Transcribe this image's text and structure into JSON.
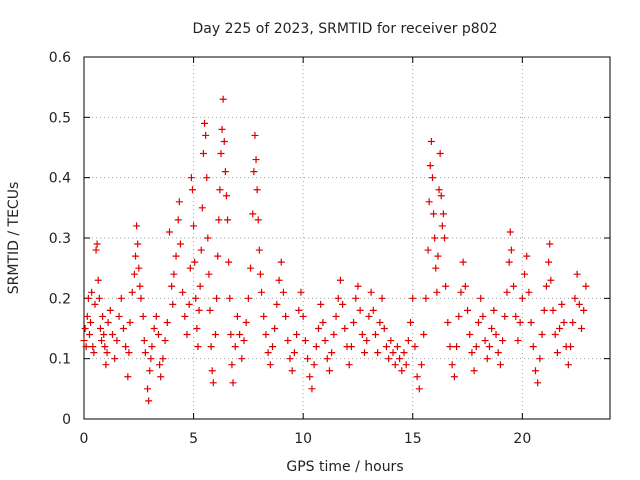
{
  "chart_data": {
    "type": "scatter",
    "title": "Day 225 of 2023, SRMTID for receiver p802",
    "xlabel": "GPS time / hours",
    "ylabel": "SRMTID / TECUs",
    "xlim": [
      0,
      24
    ],
    "ylim": [
      0,
      0.6
    ],
    "xticks": [
      0,
      5,
      10,
      15,
      20
    ],
    "yticks": [
      0,
      0.1,
      0.2,
      0.3,
      0.4,
      0.5,
      0.6
    ],
    "xtick_labels": [
      "0",
      "5",
      "10",
      "15",
      "20"
    ],
    "ytick_labels": [
      "0",
      "0.1",
      "0.2",
      "0.3",
      "0.4",
      "0.5",
      "0.6"
    ],
    "grid": true,
    "marker": "+",
    "series": [
      {
        "name": "SRMTID",
        "color": "#e00000",
        "points": [
          [
            0.0,
            0.13
          ],
          [
            0.05,
            0.15
          ],
          [
            0.1,
            0.12
          ],
          [
            0.15,
            0.17
          ],
          [
            0.2,
            0.2
          ],
          [
            0.25,
            0.14
          ],
          [
            0.3,
            0.16
          ],
          [
            0.35,
            0.21
          ],
          [
            0.4,
            0.12
          ],
          [
            0.45,
            0.11
          ],
          [
            0.5,
            0.19
          ],
          [
            0.55,
            0.28
          ],
          [
            0.6,
            0.29
          ],
          [
            0.65,
            0.23
          ],
          [
            0.7,
            0.2
          ],
          [
            0.75,
            0.15
          ],
          [
            0.8,
            0.13
          ],
          [
            0.85,
            0.17
          ],
          [
            0.9,
            0.14
          ],
          [
            0.95,
            0.12
          ],
          [
            1.0,
            0.09
          ],
          [
            1.05,
            0.11
          ],
          [
            1.1,
            0.16
          ],
          [
            1.2,
            0.18
          ],
          [
            1.3,
            0.14
          ],
          [
            1.4,
            0.1
          ],
          [
            1.5,
            0.13
          ],
          [
            1.6,
            0.17
          ],
          [
            1.7,
            0.2
          ],
          [
            1.8,
            0.15
          ],
          [
            1.9,
            0.12
          ],
          [
            2.0,
            0.07
          ],
          [
            2.05,
            0.11
          ],
          [
            2.1,
            0.16
          ],
          [
            2.2,
            0.21
          ],
          [
            2.3,
            0.24
          ],
          [
            2.35,
            0.27
          ],
          [
            2.4,
            0.32
          ],
          [
            2.45,
            0.29
          ],
          [
            2.5,
            0.25
          ],
          [
            2.55,
            0.22
          ],
          [
            2.6,
            0.2
          ],
          [
            2.7,
            0.17
          ],
          [
            2.75,
            0.13
          ],
          [
            2.8,
            0.11
          ],
          [
            2.9,
            0.05
          ],
          [
            2.95,
            0.03
          ],
          [
            3.0,
            0.08
          ],
          [
            3.05,
            0.1
          ],
          [
            3.1,
            0.12
          ],
          [
            3.2,
            0.15
          ],
          [
            3.3,
            0.17
          ],
          [
            3.4,
            0.14
          ],
          [
            3.45,
            0.09
          ],
          [
            3.5,
            0.07
          ],
          [
            3.6,
            0.1
          ],
          [
            3.7,
            0.13
          ],
          [
            3.8,
            0.16
          ],
          [
            3.9,
            0.31
          ],
          [
            4.0,
            0.22
          ],
          [
            4.05,
            0.19
          ],
          [
            4.1,
            0.24
          ],
          [
            4.2,
            0.27
          ],
          [
            4.3,
            0.33
          ],
          [
            4.35,
            0.36
          ],
          [
            4.4,
            0.29
          ],
          [
            4.5,
            0.21
          ],
          [
            4.6,
            0.17
          ],
          [
            4.7,
            0.14
          ],
          [
            4.8,
            0.19
          ],
          [
            4.85,
            0.25
          ],
          [
            4.9,
            0.4
          ],
          [
            4.95,
            0.38
          ],
          [
            5.0,
            0.32
          ],
          [
            5.05,
            0.26
          ],
          [
            5.1,
            0.2
          ],
          [
            5.15,
            0.15
          ],
          [
            5.2,
            0.12
          ],
          [
            5.25,
            0.18
          ],
          [
            5.3,
            0.22
          ],
          [
            5.35,
            0.28
          ],
          [
            5.4,
            0.35
          ],
          [
            5.45,
            0.44
          ],
          [
            5.5,
            0.49
          ],
          [
            5.55,
            0.47
          ],
          [
            5.6,
            0.4
          ],
          [
            5.65,
            0.3
          ],
          [
            5.7,
            0.24
          ],
          [
            5.75,
            0.18
          ],
          [
            5.8,
            0.12
          ],
          [
            5.85,
            0.08
          ],
          [
            5.9,
            0.06
          ],
          [
            6.0,
            0.14
          ],
          [
            6.05,
            0.2
          ],
          [
            6.1,
            0.27
          ],
          [
            6.15,
            0.33
          ],
          [
            6.2,
            0.38
          ],
          [
            6.25,
            0.44
          ],
          [
            6.3,
            0.48
          ],
          [
            6.35,
            0.53
          ],
          [
            6.4,
            0.46
          ],
          [
            6.45,
            0.41
          ],
          [
            6.5,
            0.37
          ],
          [
            6.55,
            0.33
          ],
          [
            6.6,
            0.26
          ],
          [
            6.65,
            0.2
          ],
          [
            6.7,
            0.14
          ],
          [
            6.75,
            0.09
          ],
          [
            6.8,
            0.06
          ],
          [
            6.9,
            0.12
          ],
          [
            7.0,
            0.17
          ],
          [
            7.1,
            0.14
          ],
          [
            7.2,
            0.1
          ],
          [
            7.3,
            0.13
          ],
          [
            7.4,
            0.16
          ],
          [
            7.5,
            0.2
          ],
          [
            7.6,
            0.25
          ],
          [
            7.7,
            0.34
          ],
          [
            7.75,
            0.41
          ],
          [
            7.8,
            0.47
          ],
          [
            7.85,
            0.43
          ],
          [
            7.9,
            0.38
          ],
          [
            7.95,
            0.33
          ],
          [
            8.0,
            0.28
          ],
          [
            8.05,
            0.24
          ],
          [
            8.1,
            0.21
          ],
          [
            8.2,
            0.17
          ],
          [
            8.3,
            0.14
          ],
          [
            8.4,
            0.11
          ],
          [
            8.5,
            0.09
          ],
          [
            8.6,
            0.12
          ],
          [
            8.7,
            0.15
          ],
          [
            8.8,
            0.19
          ],
          [
            8.9,
            0.23
          ],
          [
            9.0,
            0.26
          ],
          [
            9.1,
            0.21
          ],
          [
            9.2,
            0.17
          ],
          [
            9.3,
            0.13
          ],
          [
            9.4,
            0.1
          ],
          [
            9.5,
            0.08
          ],
          [
            9.6,
            0.11
          ],
          [
            9.7,
            0.14
          ],
          [
            9.8,
            0.18
          ],
          [
            9.9,
            0.21
          ],
          [
            10.0,
            0.17
          ],
          [
            10.1,
            0.13
          ],
          [
            10.2,
            0.1
          ],
          [
            10.3,
            0.07
          ],
          [
            10.4,
            0.05
          ],
          [
            10.5,
            0.09
          ],
          [
            10.6,
            0.12
          ],
          [
            10.7,
            0.15
          ],
          [
            10.8,
            0.19
          ],
          [
            10.9,
            0.16
          ],
          [
            11.0,
            0.13
          ],
          [
            11.1,
            0.1
          ],
          [
            11.2,
            0.08
          ],
          [
            11.3,
            0.11
          ],
          [
            11.4,
            0.14
          ],
          [
            11.5,
            0.17
          ],
          [
            11.6,
            0.2
          ],
          [
            11.7,
            0.23
          ],
          [
            11.8,
            0.19
          ],
          [
            11.9,
            0.15
          ],
          [
            12.0,
            0.12
          ],
          [
            12.1,
            0.09
          ],
          [
            12.2,
            0.12
          ],
          [
            12.3,
            0.16
          ],
          [
            12.4,
            0.2
          ],
          [
            12.5,
            0.22
          ],
          [
            12.6,
            0.18
          ],
          [
            12.7,
            0.14
          ],
          [
            12.8,
            0.11
          ],
          [
            12.9,
            0.13
          ],
          [
            13.0,
            0.17
          ],
          [
            13.1,
            0.21
          ],
          [
            13.2,
            0.18
          ],
          [
            13.3,
            0.14
          ],
          [
            13.4,
            0.11
          ],
          [
            13.5,
            0.16
          ],
          [
            13.6,
            0.2
          ],
          [
            13.7,
            0.15
          ],
          [
            13.8,
            0.12
          ],
          [
            13.9,
            0.1
          ],
          [
            14.0,
            0.13
          ],
          [
            14.1,
            0.11
          ],
          [
            14.2,
            0.09
          ],
          [
            14.3,
            0.12
          ],
          [
            14.4,
            0.1
          ],
          [
            14.5,
            0.08
          ],
          [
            14.6,
            0.11
          ],
          [
            14.7,
            0.09
          ],
          [
            14.8,
            0.13
          ],
          [
            14.9,
            0.16
          ],
          [
            15.0,
            0.2
          ],
          [
            15.1,
            0.12
          ],
          [
            15.2,
            0.07
          ],
          [
            15.3,
            0.05
          ],
          [
            15.4,
            0.09
          ],
          [
            15.5,
            0.14
          ],
          [
            15.6,
            0.2
          ],
          [
            15.7,
            0.28
          ],
          [
            15.75,
            0.36
          ],
          [
            15.8,
            0.42
          ],
          [
            15.85,
            0.46
          ],
          [
            15.9,
            0.4
          ],
          [
            15.95,
            0.34
          ],
          [
            16.0,
            0.3
          ],
          [
            16.05,
            0.25
          ],
          [
            16.1,
            0.21
          ],
          [
            16.15,
            0.27
          ],
          [
            16.2,
            0.38
          ],
          [
            16.25,
            0.44
          ],
          [
            16.3,
            0.37
          ],
          [
            16.35,
            0.32
          ],
          [
            16.4,
            0.34
          ],
          [
            16.45,
            0.3
          ],
          [
            16.5,
            0.22
          ],
          [
            16.6,
            0.16
          ],
          [
            16.7,
            0.12
          ],
          [
            16.8,
            0.09
          ],
          [
            16.9,
            0.07
          ],
          [
            17.0,
            0.12
          ],
          [
            17.1,
            0.17
          ],
          [
            17.2,
            0.21
          ],
          [
            17.3,
            0.26
          ],
          [
            17.4,
            0.22
          ],
          [
            17.5,
            0.18
          ],
          [
            17.6,
            0.14
          ],
          [
            17.7,
            0.11
          ],
          [
            17.8,
            0.08
          ],
          [
            17.9,
            0.12
          ],
          [
            18.0,
            0.16
          ],
          [
            18.1,
            0.2
          ],
          [
            18.2,
            0.17
          ],
          [
            18.3,
            0.13
          ],
          [
            18.4,
            0.1
          ],
          [
            18.5,
            0.12
          ],
          [
            18.6,
            0.15
          ],
          [
            18.7,
            0.18
          ],
          [
            18.8,
            0.14
          ],
          [
            18.9,
            0.11
          ],
          [
            19.0,
            0.09
          ],
          [
            19.1,
            0.13
          ],
          [
            19.2,
            0.17
          ],
          [
            19.3,
            0.21
          ],
          [
            19.4,
            0.26
          ],
          [
            19.45,
            0.31
          ],
          [
            19.5,
            0.28
          ],
          [
            19.6,
            0.22
          ],
          [
            19.7,
            0.17
          ],
          [
            19.8,
            0.13
          ],
          [
            19.9,
            0.16
          ],
          [
            20.0,
            0.2
          ],
          [
            20.1,
            0.24
          ],
          [
            20.2,
            0.27
          ],
          [
            20.3,
            0.21
          ],
          [
            20.4,
            0.16
          ],
          [
            20.5,
            0.12
          ],
          [
            20.6,
            0.08
          ],
          [
            20.7,
            0.06
          ],
          [
            20.8,
            0.1
          ],
          [
            20.9,
            0.14
          ],
          [
            21.0,
            0.18
          ],
          [
            21.1,
            0.22
          ],
          [
            21.2,
            0.26
          ],
          [
            21.25,
            0.29
          ],
          [
            21.3,
            0.23
          ],
          [
            21.4,
            0.18
          ],
          [
            21.5,
            0.14
          ],
          [
            21.6,
            0.11
          ],
          [
            21.7,
            0.15
          ],
          [
            21.8,
            0.19
          ],
          [
            21.9,
            0.16
          ],
          [
            22.0,
            0.12
          ],
          [
            22.1,
            0.09
          ],
          [
            22.2,
            0.12
          ],
          [
            22.3,
            0.16
          ],
          [
            22.4,
            0.2
          ],
          [
            22.5,
            0.24
          ],
          [
            22.6,
            0.19
          ],
          [
            22.7,
            0.15
          ],
          [
            22.8,
            0.18
          ],
          [
            22.9,
            0.22
          ]
        ]
      }
    ]
  }
}
